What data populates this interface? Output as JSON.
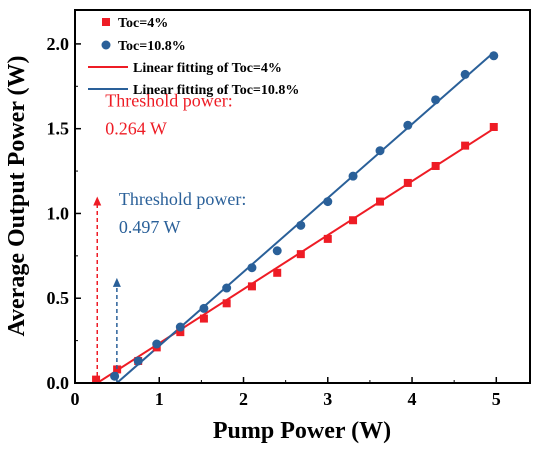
{
  "chart_data": {
    "type": "scatter",
    "xlabel": "Pump Power (W)",
    "ylabel": "Average Output Power (W)",
    "xlim": [
      0,
      5.4
    ],
    "ylim": [
      0,
      2.2
    ],
    "xticks": [
      0,
      1,
      2,
      3,
      4,
      5
    ],
    "yticks": [
      0.0,
      0.5,
      1.0,
      1.5,
      2.0
    ],
    "xtick_labels": [
      "0",
      "1",
      "2",
      "3",
      "4",
      "5"
    ],
    "ytick_labels": [
      "0.0",
      "0.5",
      "1.0",
      "1.5",
      "2.0"
    ],
    "grid": false,
    "legend_position": "top-left",
    "series": [
      {
        "name": "Toc=4%",
        "marker": "square",
        "color": "#ee1c25",
        "x": [
          0.25,
          0.5,
          0.75,
          0.97,
          1.25,
          1.53,
          1.8,
          2.1,
          2.4,
          2.68,
          3.0,
          3.3,
          3.62,
          3.95,
          4.28,
          4.63,
          4.97
        ],
        "y": [
          0.02,
          0.08,
          0.13,
          0.21,
          0.3,
          0.38,
          0.47,
          0.57,
          0.65,
          0.76,
          0.85,
          0.96,
          1.07,
          1.18,
          1.28,
          1.4,
          1.51
        ]
      },
      {
        "name": "Toc=10.8%",
        "marker": "circle",
        "color": "#2a6099",
        "x": [
          0.47,
          0.75,
          0.97,
          1.25,
          1.53,
          1.8,
          2.1,
          2.4,
          2.68,
          3.0,
          3.3,
          3.62,
          3.95,
          4.28,
          4.63,
          4.97
        ],
        "y": [
          0.04,
          0.13,
          0.23,
          0.33,
          0.44,
          0.56,
          0.68,
          0.78,
          0.93,
          1.07,
          1.22,
          1.37,
          1.52,
          1.67,
          1.82,
          1.93
        ]
      },
      {
        "name": "Linear fitting of Toc=4%",
        "type": "line",
        "color": "#ee1c25",
        "x": [
          0.264,
          4.97
        ],
        "y": [
          0.0,
          1.5
        ]
      },
      {
        "name": "Linear fitting of Toc=10.8%",
        "type": "line",
        "color": "#2a6099",
        "x": [
          0.497,
          4.97
        ],
        "y": [
          0.0,
          1.95
        ]
      }
    ],
    "annotations": [
      {
        "line1": "Threshold power:",
        "line2": "0.264 W",
        "color": "#ee1c25",
        "arrow_x": 0.264,
        "arrow_y_from": 0.0,
        "arrow_y_to": 1.1
      },
      {
        "line1": "Threshold power:",
        "line2": "0.497 W",
        "color": "#2a6099",
        "arrow_x": 0.497,
        "arrow_y_from": 0.0,
        "arrow_y_to": 0.62
      }
    ]
  }
}
